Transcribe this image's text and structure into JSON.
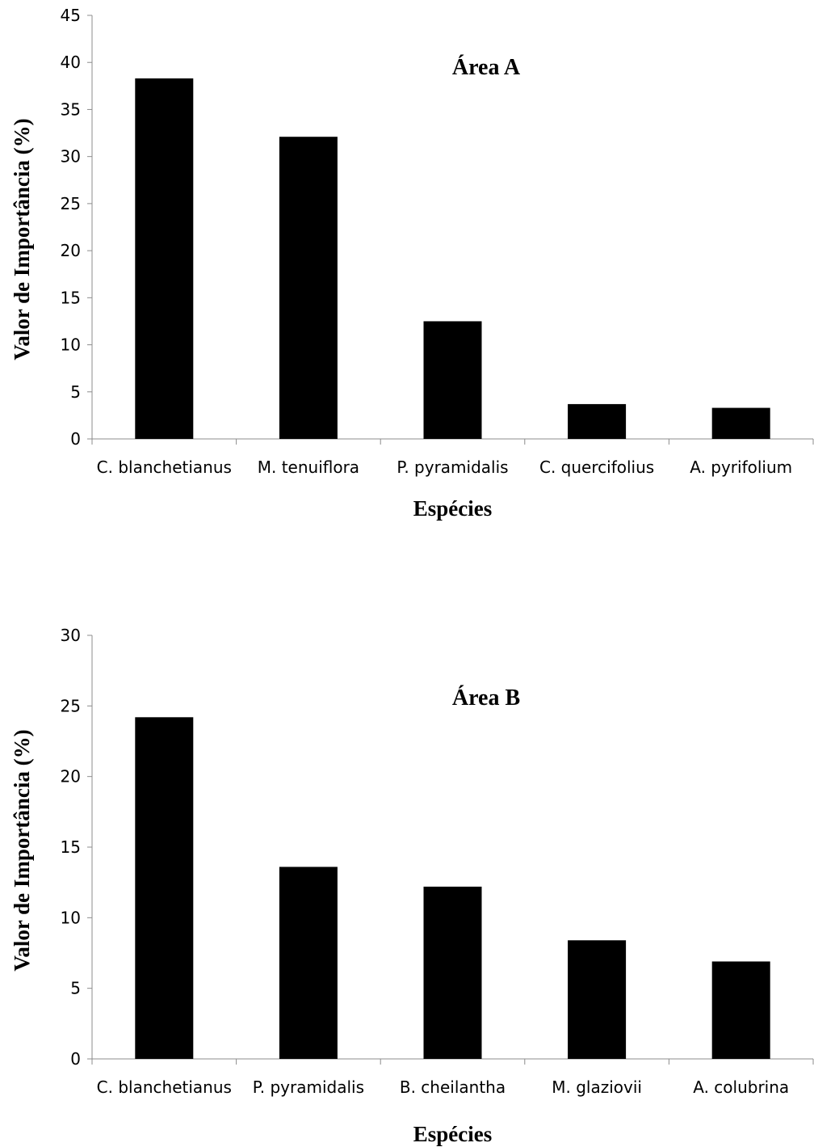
{
  "chart_data": [
    {
      "type": "bar",
      "title": "Área A",
      "xlabel": "Espécies",
      "ylabel": "Valor de Importância (%)",
      "ylim": [
        0,
        45
      ],
      "yticks": [
        0,
        5,
        10,
        15,
        20,
        25,
        30,
        35,
        40,
        45
      ],
      "categories": [
        "C. blanchetianus",
        "M. tenuiflora",
        "P. pyramidalis",
        "C. quercifolius",
        "A. pyrifolium"
      ],
      "values": [
        38.3,
        32.1,
        12.5,
        3.7,
        3.3
      ],
      "bar_color": "#000000",
      "grid": false,
      "legend": "none"
    },
    {
      "type": "bar",
      "title": "Área B",
      "xlabel": "Espécies",
      "ylabel": "Valor de Importância (%)",
      "ylim": [
        0,
        30
      ],
      "yticks": [
        0,
        5,
        10,
        15,
        20,
        25,
        30
      ],
      "categories": [
        "C. blanchetianus",
        "P. pyramidalis",
        "B. cheilantha",
        "M. glaziovii",
        "A. colubrina"
      ],
      "values": [
        24.2,
        13.6,
        12.2,
        8.4,
        6.9
      ],
      "bar_color": "#000000",
      "grid": false,
      "legend": "none"
    }
  ]
}
